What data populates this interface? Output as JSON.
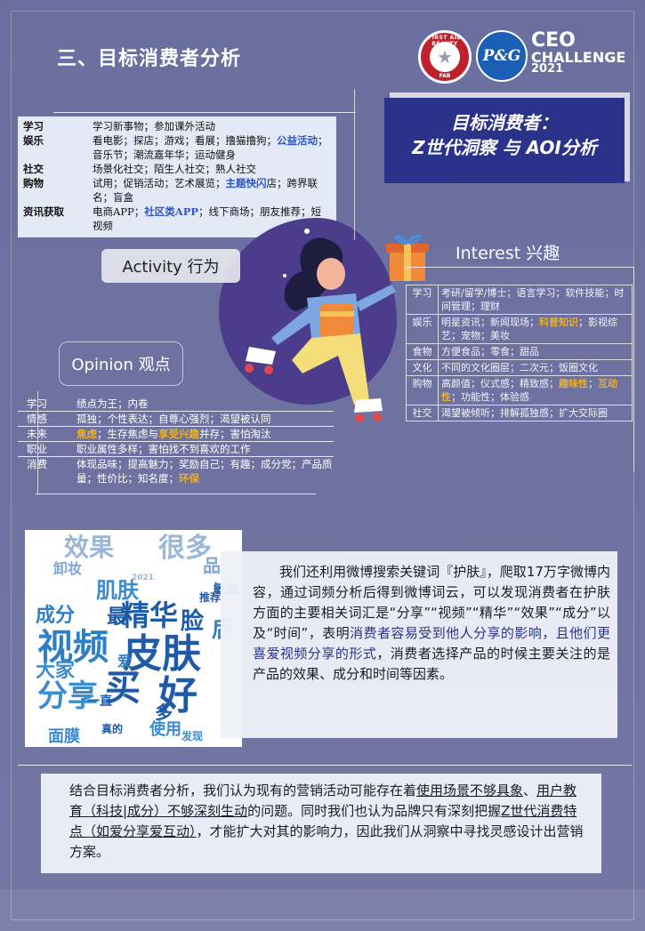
{
  "header": {
    "section_title": "三、目标消费者分析",
    "fab_logo": {
      "ring_top": "FIRST AID BEAUTY",
      "ring_bottom": "FAB",
      "center_icon": "star-icon"
    },
    "pg_logo": "P&G",
    "ceo_line1": "CEO",
    "ceo_line2": "CHALLENGE",
    "ceo_line3": "2021"
  },
  "banner": {
    "line1": "目标消费者：",
    "line2": "Z世代洞察 与 AOI分析"
  },
  "activity": {
    "pill_label": "Activity 行为",
    "rows": [
      {
        "key": "学习",
        "parts": [
          {
            "t": "学习新事物；参加课外活动"
          }
        ]
      },
      {
        "key": "娱乐",
        "parts": [
          {
            "t": "看电影；探店；游戏；看展；撸猫撸狗；"
          },
          {
            "t": "公益活动",
            "hl": "blue"
          },
          {
            "t": "；音乐节；潮流嘉年华；运动健身"
          }
        ]
      },
      {
        "key": "社交",
        "parts": [
          {
            "t": "场景化社交；陌生人社交；熟人社交"
          }
        ]
      },
      {
        "key": "购物",
        "parts": [
          {
            "t": "试用；促销活动；艺术展览；"
          },
          {
            "t": "主题快闪",
            "hl": "blue"
          },
          {
            "t": "店；跨界联名；盲盒"
          }
        ]
      },
      {
        "key": "资讯获取",
        "parts": [
          {
            "t": "电商APP；"
          },
          {
            "t": "社区类APP",
            "hl": "blue"
          },
          {
            "t": "；线下商场；朋友推荐；短视频"
          }
        ]
      }
    ]
  },
  "interest": {
    "title": "Interest 兴趣",
    "rows": [
      {
        "key": "学习",
        "parts": [
          {
            "t": "考研/留学/博士；语言学习；软件技能；时间管理；理财"
          }
        ]
      },
      {
        "key": "娱乐",
        "parts": [
          {
            "t": "明星资讯；新闻现场；"
          },
          {
            "t": "科普知识",
            "hl": "gold"
          },
          {
            "t": "；影视综艺；宠物；美妆"
          }
        ]
      },
      {
        "key": "食物",
        "parts": [
          {
            "t": "方便食品；零食；甜品"
          }
        ]
      },
      {
        "key": "文化",
        "parts": [
          {
            "t": "不同的文化圈层；二次元；饭圈文化"
          }
        ]
      },
      {
        "key": "购物",
        "parts": [
          {
            "t": "高颜值；仪式感；精致感；"
          },
          {
            "t": "趣味性",
            "hl": "gold"
          },
          {
            "t": "；"
          },
          {
            "t": "互动性",
            "hl": "gold"
          },
          {
            "t": "；功能性；体验感"
          }
        ]
      },
      {
        "key": "社交",
        "parts": [
          {
            "t": "渴望被倾听；排解孤独感；扩大交际圈"
          }
        ]
      }
    ]
  },
  "opinion": {
    "pill_label": "Opinion 观点",
    "rows": [
      {
        "key": "学习",
        "parts": [
          {
            "t": "绩点为王；内卷"
          }
        ]
      },
      {
        "key": "情感",
        "parts": [
          {
            "t": "孤独；个性表达；自尊心强烈；渴望被认同"
          }
        ]
      },
      {
        "key": "未来",
        "parts": [
          {
            "t": "焦虑",
            "hl": "gold"
          },
          {
            "t": "；生存焦虑与"
          },
          {
            "t": "享受兴趣",
            "hl": "gold"
          },
          {
            "t": "并存；害怕淘汰"
          }
        ]
      },
      {
        "key": "职业",
        "parts": [
          {
            "t": "职业属性多样；害怕找不到喜欢的工作"
          }
        ]
      },
      {
        "key": "消费",
        "parts": [
          {
            "t": "体现品味；提高魅力；奖励自己；有趣；成分党；产品质量；性价比；知名度；"
          },
          {
            "t": "环保",
            "hl": "gold"
          }
        ]
      }
    ]
  },
  "wordcloud": {
    "words": [
      {
        "t": "皮肤",
        "c": "#1e5aa8"
      },
      {
        "t": "好",
        "c": "#1e5aa8"
      },
      {
        "t": "视频",
        "c": "#2f7fc4"
      },
      {
        "t": "精华",
        "c": "#1e5aa8"
      },
      {
        "t": "买",
        "c": "#1e5aa8"
      },
      {
        "t": "分享",
        "c": "#3a8cd0"
      },
      {
        "t": "效果",
        "c": "#9ab6d8"
      },
      {
        "t": "很多",
        "c": "#9ab6d8"
      },
      {
        "t": "成分",
        "c": "#2f7fc4"
      },
      {
        "t": "肌肤",
        "c": "#3a8cd0"
      },
      {
        "t": "脸",
        "c": "#1e5aa8"
      },
      {
        "t": "后",
        "c": "#2f7fc4"
      },
      {
        "t": "大家",
        "c": "#3a8cd0"
      },
      {
        "t": "多",
        "c": "#1e5aa8"
      },
      {
        "t": "使用",
        "c": "#3a8cd0"
      },
      {
        "t": "面膜",
        "c": "#3a8cd0"
      },
      {
        "t": "最",
        "c": "#1e5aa8"
      },
      {
        "t": "爱",
        "c": "#2f7fc4"
      },
      {
        "t": "卸妆",
        "c": "#7fa6d2"
      },
      {
        "t": "品",
        "c": "#7fa6d2"
      },
      {
        "t": "推荐",
        "c": "#1e5aa8"
      },
      {
        "t": "敏感",
        "c": "#1e5aa8"
      },
      {
        "t": "一直",
        "c": "#1e5aa8"
      },
      {
        "t": "2021",
        "c": "#9ab6d8"
      },
      {
        "t": "发现",
        "c": "#3a8cd0"
      },
      {
        "t": "真的",
        "c": "#1e5aa8"
      }
    ]
  },
  "paragraph1": {
    "parts": [
      {
        "t": "我们还利用微博搜索关键词『护肤』，爬取17万字微博内容，通过词频分析后得到微博词云，可以发现消费者在护肤方面的主要相关词汇是“分享”“视频”“精华”“效果”“成分”以及“时间”，表明"
      },
      {
        "t": "消费者容易受到他人分享的影响，且他们更喜爱视频分享的形式",
        "hl": "navy"
      },
      {
        "t": "，消费者选择产品的时候主要关注的是产品的效果、成分和时间等因素。"
      }
    ]
  },
  "paragraph2": {
    "parts": [
      {
        "t": "结合目标消费者分析，我们认为现有的营销活动可能存在着"
      },
      {
        "t": "使用场景不够具象",
        "u": true
      },
      {
        "t": "、"
      },
      {
        "t": "用户教育（科技|成分）不够深刻生动",
        "u": true
      },
      {
        "t": "的问题。同时我们也认为品牌只有深刻把握"
      },
      {
        "t": "Z世代消费特点（如爱分享爱互动）",
        "u": true
      },
      {
        "t": "，才能扩大对其的影响力，因此我们从洞察中寻找灵感设计出营销方案。"
      }
    ]
  },
  "colors": {
    "background": "#6b6f9e",
    "banner": "#2a3389",
    "highlight_blue": "#2d55c8",
    "highlight_gold": "#e8b02c"
  }
}
